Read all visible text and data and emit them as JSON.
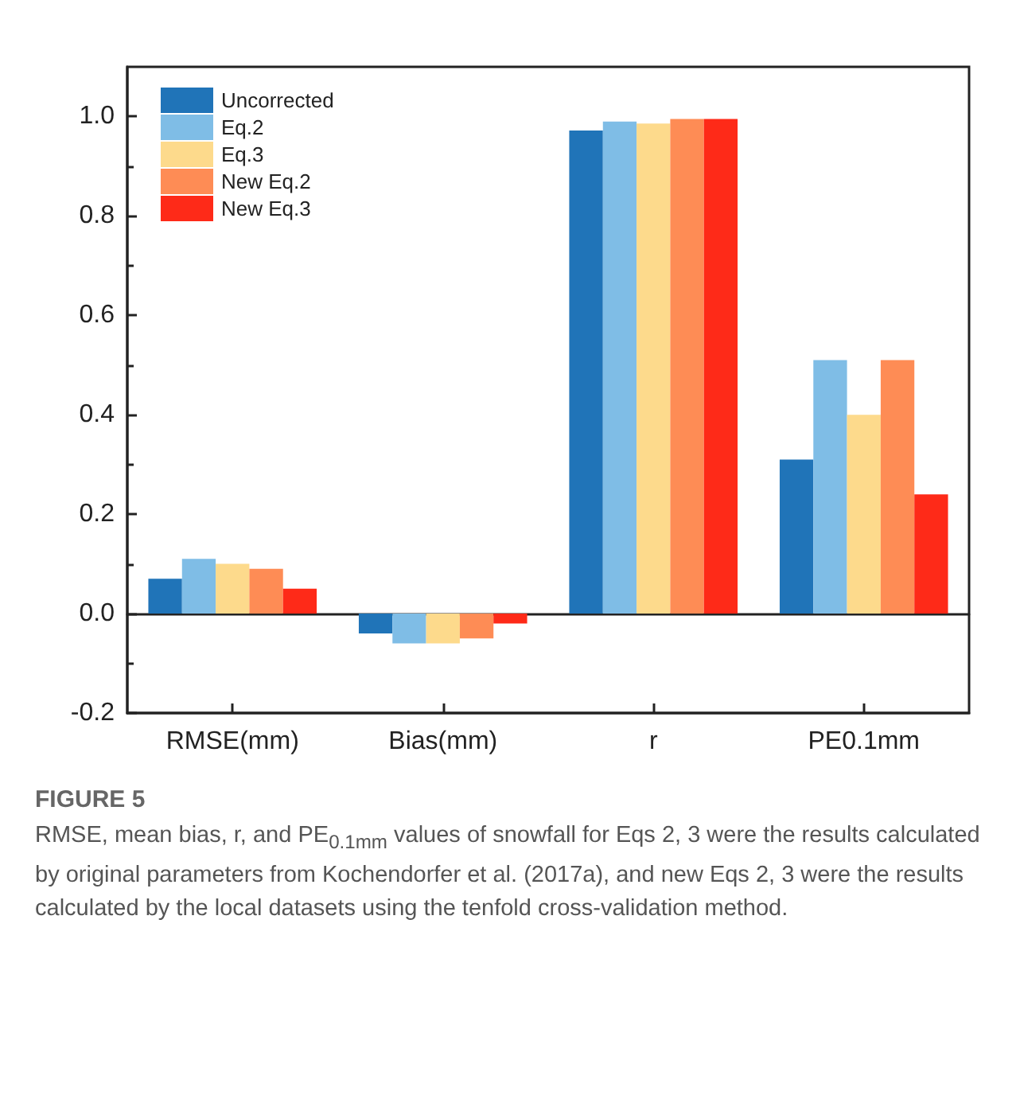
{
  "chart_data": {
    "type": "bar",
    "categories": [
      "RMSE(mm)",
      "Bias(mm)",
      "r",
      "PE0.1mm"
    ],
    "series": [
      {
        "name": "Uncorrected",
        "color": "#2074b8",
        "values": [
          0.07,
          -0.04,
          0.972,
          0.31
        ]
      },
      {
        "name": "Eq.2",
        "color": "#7fbde6",
        "values": [
          0.11,
          -0.06,
          0.99,
          0.51
        ]
      },
      {
        "name": "Eq.3",
        "color": "#fdda8c",
        "values": [
          0.1,
          -0.06,
          0.986,
          0.4
        ]
      },
      {
        "name": "New Eq.2",
        "color": "#fe8c55",
        "values": [
          0.09,
          -0.05,
          0.995,
          0.51
        ]
      },
      {
        "name": "New Eq.3",
        "color": "#fe2a18",
        "values": [
          0.05,
          -0.02,
          0.995,
          0.24
        ]
      }
    ],
    "ylim": [
      -0.2,
      1.1
    ],
    "yticks": [
      -0.2,
      {
        "value": 0,
        "label": "0.0"
      },
      0.2,
      0.4,
      0.6,
      0.8,
      {
        "value": 1,
        "label": "1.0"
      }
    ],
    "legend": "top left",
    "annotations": [
      "FIGURE 5",
      "RMSE, mean bias, r, and PE$_{0.1mm}$ values of snowfall for Eqs 2, 3 were the results calculated by original parameters from Kochendorfer et al. (2017a), and new Eqs 2, 3 were the results calculated by the local datasets using the tenfold cross-validation method."
    ]
  }
}
